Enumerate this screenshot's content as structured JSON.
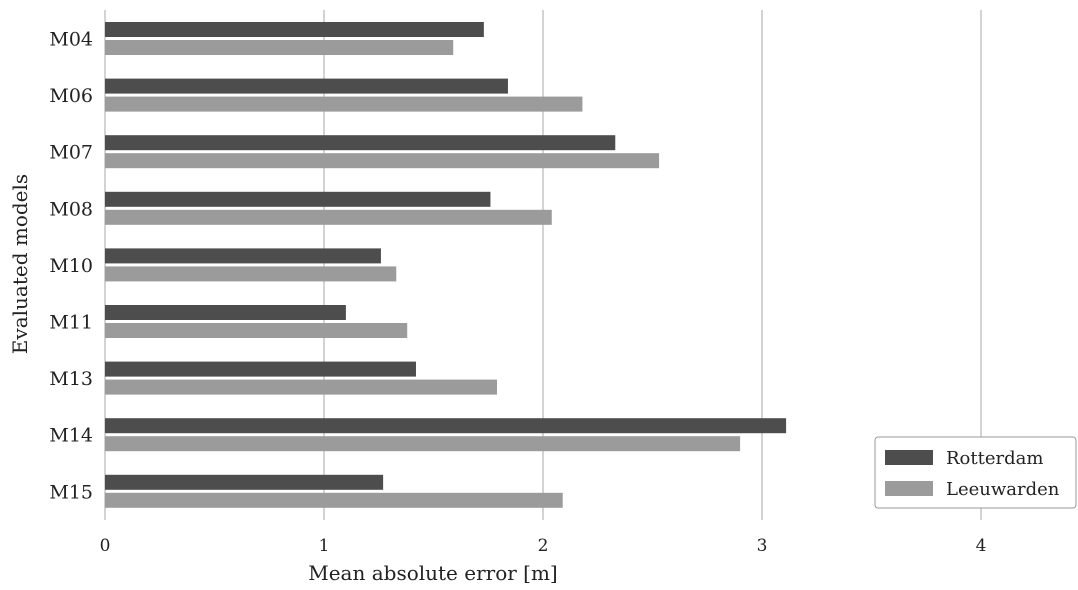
{
  "chart_data": {
    "type": "bar",
    "orientation": "horizontal",
    "title": "",
    "xlabel": "Mean absolute error [m]",
    "ylabel": "Evaluated models",
    "xlim": [
      0,
      4.4
    ],
    "xticks": [
      0,
      1,
      2,
      3,
      4
    ],
    "grid": "vertical",
    "legend": "bottom-right",
    "categories": [
      "M04",
      "M06",
      "M07",
      "M08",
      "M10",
      "M11",
      "M13",
      "M14",
      "M15"
    ],
    "series": [
      {
        "name": "Rotterdam",
        "color": "#4d4d4d",
        "values": [
          1.73,
          1.84,
          2.33,
          1.76,
          1.26,
          1.1,
          1.42,
          3.11,
          1.27
        ]
      },
      {
        "name": "Leeuwarden",
        "color": "#9b9b9b",
        "values": [
          1.59,
          2.18,
          2.53,
          2.04,
          1.33,
          1.38,
          1.79,
          2.9,
          2.09
        ]
      }
    ]
  }
}
